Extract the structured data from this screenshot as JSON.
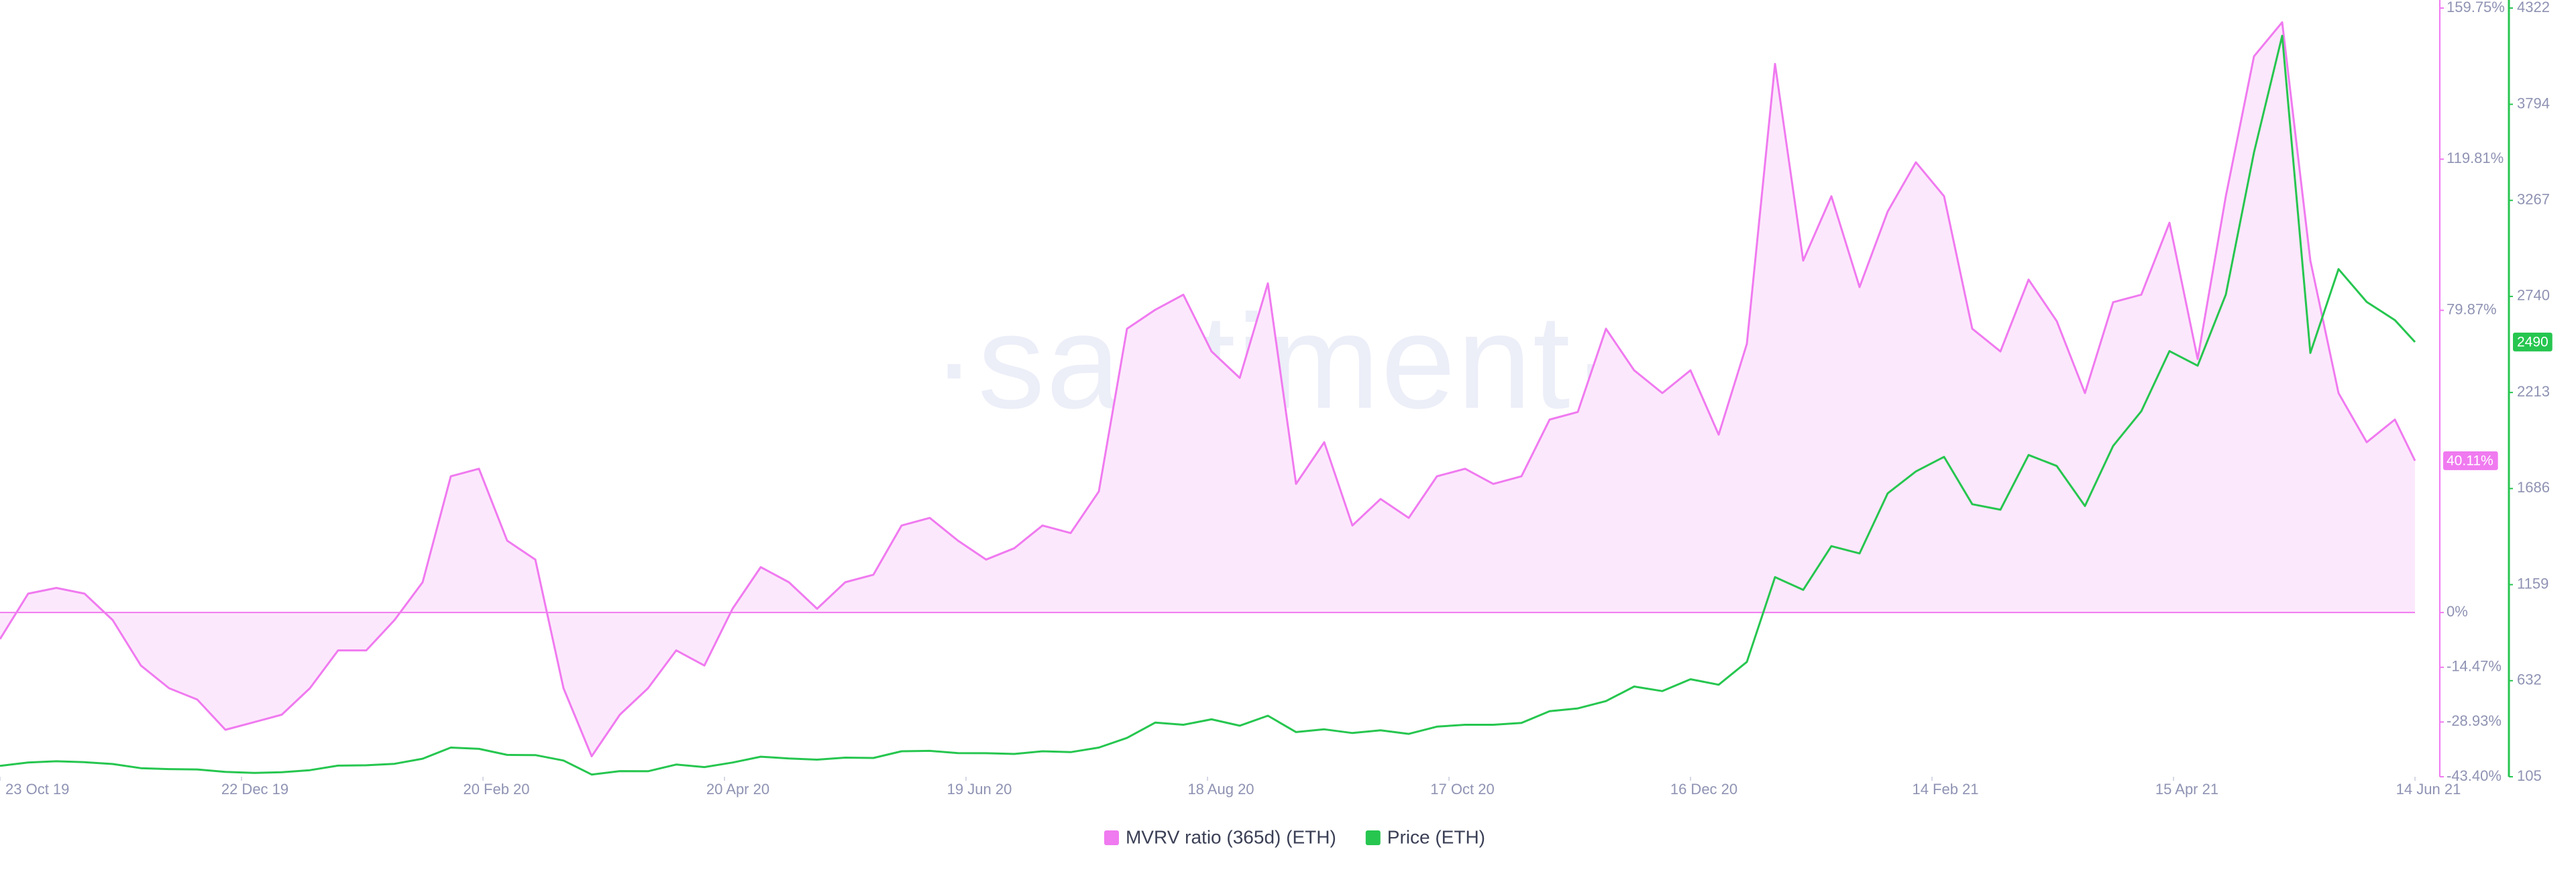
{
  "chart_data": {
    "type": "line",
    "watermark": "·santiment·",
    "x": [
      "2019-10-23",
      "2019-10-30",
      "2019-11-06",
      "2019-11-13",
      "2019-11-20",
      "2019-11-27",
      "2019-12-04",
      "2019-12-11",
      "2019-12-18",
      "2019-12-25",
      "2020-01-01",
      "2020-01-08",
      "2020-01-15",
      "2020-01-22",
      "2020-01-29",
      "2020-02-05",
      "2020-02-12",
      "2020-02-19",
      "2020-02-26",
      "2020-03-04",
      "2020-03-11",
      "2020-03-18",
      "2020-03-25",
      "2020-04-01",
      "2020-04-08",
      "2020-04-15",
      "2020-04-22",
      "2020-04-29",
      "2020-05-06",
      "2020-05-13",
      "2020-05-20",
      "2020-05-27",
      "2020-06-03",
      "2020-06-10",
      "2020-06-17",
      "2020-06-24",
      "2020-07-01",
      "2020-07-08",
      "2020-07-15",
      "2020-07-22",
      "2020-07-29",
      "2020-08-05",
      "2020-08-12",
      "2020-08-19",
      "2020-08-26",
      "2020-09-02",
      "2020-09-09",
      "2020-09-16",
      "2020-09-23",
      "2020-09-30",
      "2020-10-07",
      "2020-10-14",
      "2020-10-21",
      "2020-10-28",
      "2020-11-04",
      "2020-11-11",
      "2020-11-18",
      "2020-11-25",
      "2020-12-02",
      "2020-12-09",
      "2020-12-16",
      "2020-12-23",
      "2020-12-30",
      "2021-01-06",
      "2021-01-13",
      "2021-01-20",
      "2021-01-27",
      "2021-02-03",
      "2021-02-10",
      "2021-02-17",
      "2021-02-24",
      "2021-03-03",
      "2021-03-10",
      "2021-03-17",
      "2021-03-24",
      "2021-03-31",
      "2021-04-07",
      "2021-04-14",
      "2021-04-21",
      "2021-04-28",
      "2021-05-05",
      "2021-05-12",
      "2021-05-19",
      "2021-05-26",
      "2021-06-02",
      "2021-06-09",
      "2021-06-14"
    ],
    "xlim": [
      "2019-10-23",
      "2021-06-14"
    ],
    "xticks": [
      {
        "value": "2019-10-23",
        "label": "23 Oct 19"
      },
      {
        "value": "2019-12-22",
        "label": "22 Dec 19"
      },
      {
        "value": "2020-02-20",
        "label": "20 Feb 20"
      },
      {
        "value": "2020-04-20",
        "label": "20 Apr 20"
      },
      {
        "value": "2020-06-19",
        "label": "19 Jun 20"
      },
      {
        "value": "2020-08-18",
        "label": "18 Aug 20"
      },
      {
        "value": "2020-10-17",
        "label": "17 Oct 20"
      },
      {
        "value": "2020-12-16",
        "label": "16 Dec 20"
      },
      {
        "value": "2021-02-14",
        "label": "14 Feb 21"
      },
      {
        "value": "2021-04-15",
        "label": "15 Apr 21"
      },
      {
        "value": "2021-06-14",
        "label": "14 Jun 21"
      }
    ],
    "ylim": [
      -43.4,
      159.75
    ],
    "yticks": [
      {
        "value": 159.75,
        "label": "159.75%"
      },
      {
        "value": 119.81,
        "label": "119.81%"
      },
      {
        "value": 79.87,
        "label": "79.87%"
      },
      {
        "value": 0,
        "label": "0%"
      },
      {
        "value": -14.47,
        "label": "-14.47%"
      },
      {
        "value": -28.93,
        "label": "-28.93%"
      },
      {
        "value": -43.4,
        "label": "-43.40%"
      }
    ],
    "y2lim": [
      105,
      4322
    ],
    "y2ticks": [
      4322,
      3794,
      3267,
      2740,
      2213,
      1686,
      1159,
      632,
      105
    ],
    "series": [
      {
        "name": "MVRV ratio (365d) (ETH)",
        "color": "#f07af0",
        "fill": "#fce8fc",
        "values": [
          -7,
          5,
          6.5,
          5,
          -2,
          -14,
          -20,
          -23,
          -31,
          -29,
          -27,
          -20,
          -10,
          -10,
          -2,
          8,
          36,
          38,
          19,
          14,
          -20,
          -38,
          -27,
          -20,
          -10,
          -14,
          1,
          12,
          8,
          1,
          8,
          10,
          23,
          25,
          19,
          14,
          17,
          23,
          21,
          32,
          75,
          80,
          84,
          69,
          62,
          87,
          34,
          45,
          23,
          30,
          25,
          36,
          38,
          34,
          36,
          51,
          53,
          75,
          64,
          58,
          64,
          47,
          71,
          145,
          93,
          110,
          86,
          106,
          119,
          110,
          75,
          69,
          88,
          77,
          58,
          82,
          84,
          103,
          67,
          110,
          147,
          156,
          93,
          58,
          45,
          51,
          40.11
        ],
        "value_labels": [
          null,
          null,
          null,
          null,
          null,
          null,
          null,
          null,
          null,
          null,
          null,
          null,
          null,
          null,
          null,
          null,
          null,
          null,
          null,
          null,
          null,
          null,
          null,
          null,
          null,
          null,
          null,
          null,
          null,
          null,
          null,
          null,
          null,
          null,
          null,
          null,
          null,
          null,
          null,
          null,
          null,
          null,
          null,
          null,
          null,
          null,
          null,
          null,
          null,
          null,
          null,
          null,
          null,
          null,
          null,
          null,
          null,
          null,
          null,
          null,
          null,
          null,
          null,
          null,
          null,
          null,
          null,
          null,
          null,
          null,
          null,
          null,
          null,
          null,
          null,
          null,
          null,
          null,
          null,
          null,
          null,
          null,
          null,
          null,
          null,
          null,
          "40.11%"
        ]
      },
      {
        "name": "Price (ETH)",
        "color": "#26c64f",
        "axis": "y2",
        "values": [
          165,
          183,
          190,
          185,
          175,
          152,
          147,
          145,
          132,
          126,
          130,
          141,
          166,
          168,
          176,
          204,
          265,
          258,
          225,
          224,
          194,
          117,
          136,
          135,
          172,
          158,
          183,
          215,
          205,
          199,
          210,
          208,
          245,
          247,
          235,
          234,
          230,
          245,
          240,
          265,
          318,
          402,
          390,
          420,
          385,
          440,
          350,
          365,
          345,
          360,
          340,
          380,
          390,
          390,
          400,
          465,
          480,
          520,
          600,
          575,
          640,
          610,
          735,
          1200,
          1130,
          1370,
          1330,
          1660,
          1780,
          1860,
          1600,
          1570,
          1870,
          1810,
          1590,
          1920,
          2110,
          2440,
          2360,
          2750,
          3530,
          4170,
          2430,
          2890,
          2710,
          2610,
          2490
        ]
      }
    ],
    "grid": false,
    "legend": "bottom"
  }
}
